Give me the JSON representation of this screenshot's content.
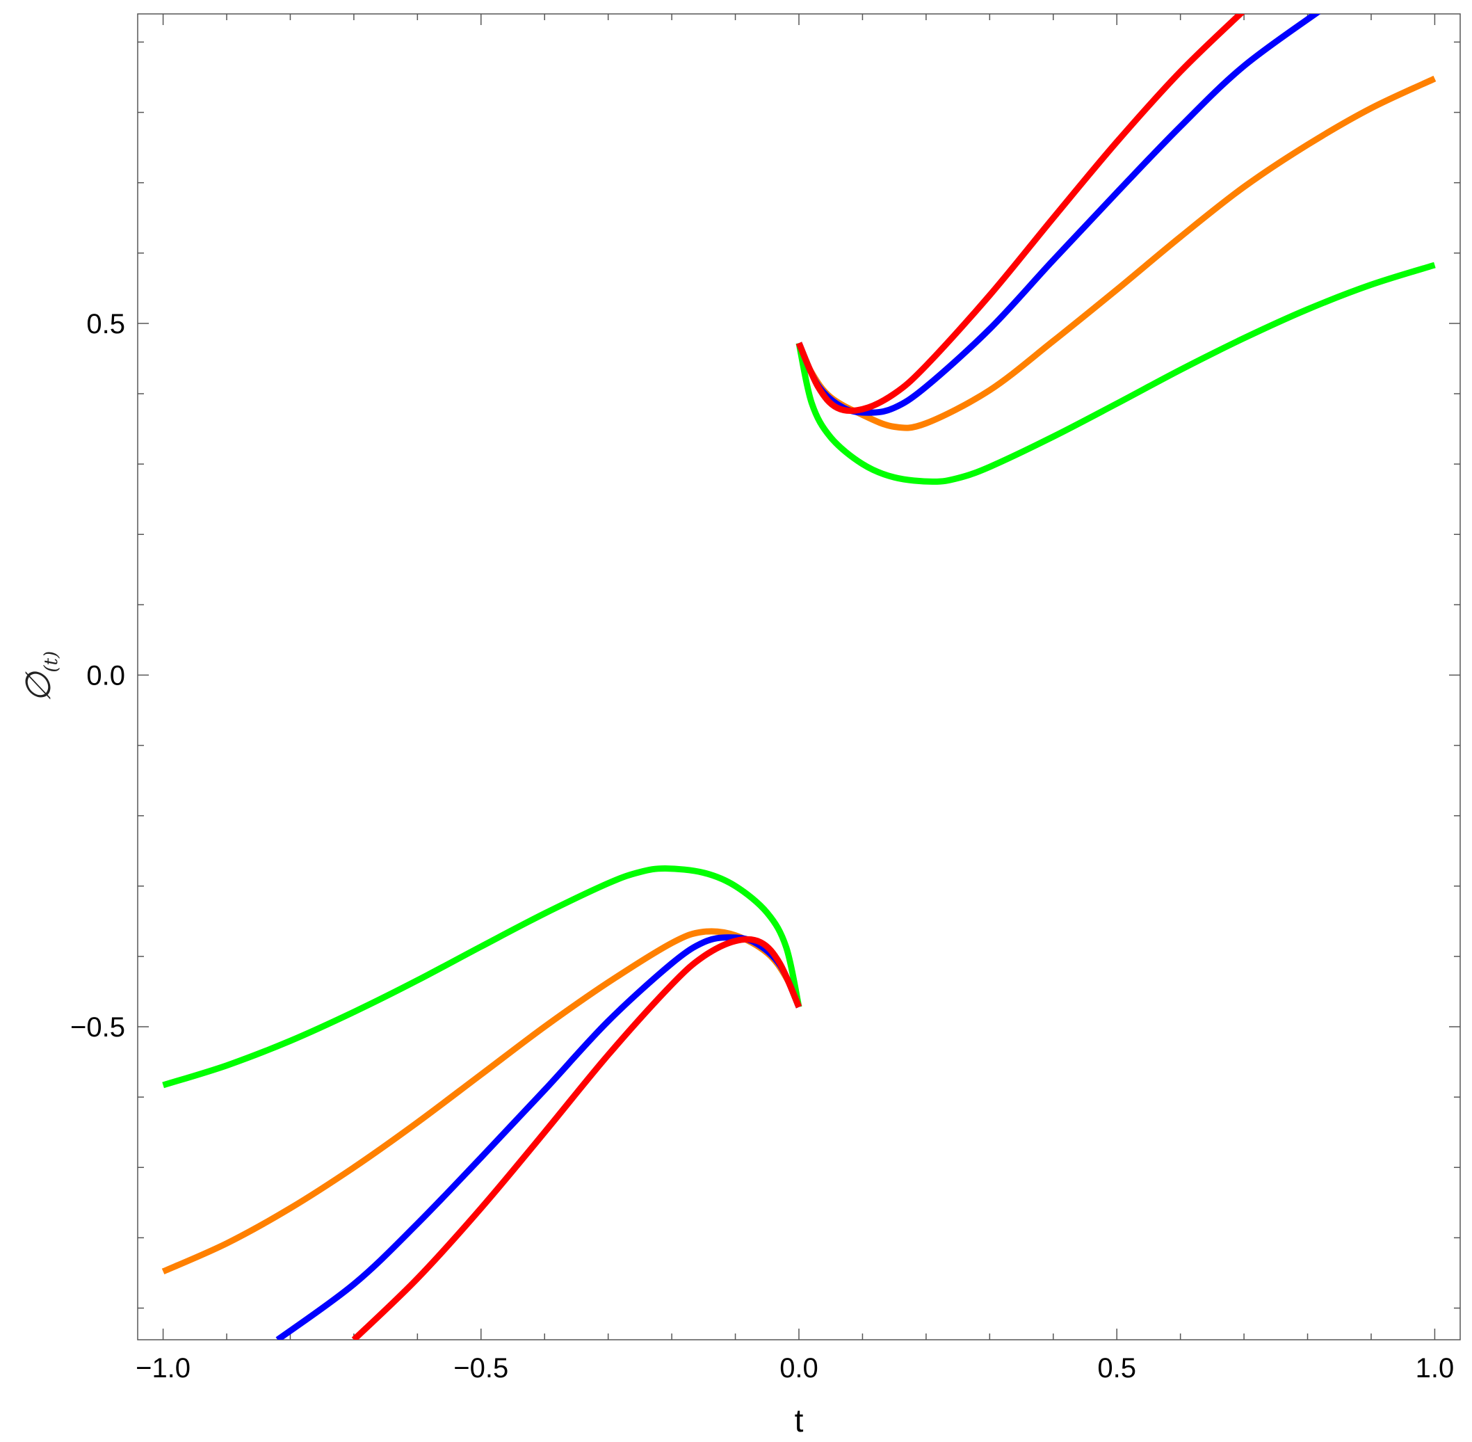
{
  "chart_data": {
    "type": "line",
    "title": "",
    "xlabel": "t",
    "ylabel": {
      "main": "∅",
      "sub": "(t)"
    },
    "xlim": [
      -1.04,
      1.04
    ],
    "ylim": [
      -0.945,
      0.94
    ],
    "x_ticks": [
      -1.0,
      -0.5,
      0.0,
      0.5,
      1.0
    ],
    "x_tick_labels": [
      "−1.0",
      "−0.5",
      "0.0",
      "0.5",
      "1.0"
    ],
    "y_ticks": [
      -0.5,
      0.0,
      0.5
    ],
    "y_tick_labels": [
      "−0.5",
      "0.0",
      "0.5"
    ],
    "grid": false,
    "legend": "none",
    "series": [
      {
        "color": "#00ff00",
        "points": [
          [
            -1.0,
            -0.583
          ],
          [
            -0.9,
            -0.555
          ],
          [
            -0.8,
            -0.52
          ],
          [
            -0.7,
            -0.479
          ],
          [
            -0.6,
            -0.434
          ],
          [
            -0.5,
            -0.386
          ],
          [
            -0.4,
            -0.339
          ],
          [
            -0.3,
            -0.296
          ],
          [
            -0.25,
            -0.28
          ],
          [
            -0.21,
            -0.275
          ],
          [
            -0.15,
            -0.281
          ],
          [
            -0.1,
            -0.3
          ],
          [
            -0.05,
            -0.338
          ],
          [
            -0.02,
            -0.387
          ],
          [
            0.0,
            -0.472
          ],
          [
            null,
            null
          ],
          [
            0.0,
            0.472
          ],
          [
            0.02,
            0.387
          ],
          [
            0.05,
            0.338
          ],
          [
            0.1,
            0.3
          ],
          [
            0.15,
            0.281
          ],
          [
            0.21,
            0.275
          ],
          [
            0.25,
            0.28
          ],
          [
            0.3,
            0.296
          ],
          [
            0.4,
            0.339
          ],
          [
            0.5,
            0.386
          ],
          [
            0.6,
            0.434
          ],
          [
            0.7,
            0.479
          ],
          [
            0.8,
            0.52
          ],
          [
            0.9,
            0.555
          ],
          [
            1.0,
            0.583
          ]
        ]
      },
      {
        "color": "#ff8000",
        "points": [
          [
            -1.0,
            -0.848
          ],
          [
            -0.9,
            -0.808
          ],
          [
            -0.8,
            -0.758
          ],
          [
            -0.7,
            -0.7
          ],
          [
            -0.6,
            -0.636
          ],
          [
            -0.5,
            -0.568
          ],
          [
            -0.4,
            -0.5
          ],
          [
            -0.3,
            -0.437
          ],
          [
            -0.2,
            -0.381
          ],
          [
            -0.15,
            -0.365
          ],
          [
            -0.1,
            -0.37
          ],
          [
            -0.05,
            -0.395
          ],
          [
            -0.02,
            -0.43
          ],
          [
            0.0,
            -0.472
          ],
          [
            null,
            null
          ],
          [
            0.0,
            0.472
          ],
          [
            0.02,
            0.43
          ],
          [
            0.05,
            0.395
          ],
          [
            0.1,
            0.37
          ],
          [
            0.15,
            0.353
          ],
          [
            0.2,
            0.358
          ],
          [
            0.3,
            0.405
          ],
          [
            0.4,
            0.475
          ],
          [
            0.5,
            0.548
          ],
          [
            0.6,
            0.623
          ],
          [
            0.7,
            0.694
          ],
          [
            0.8,
            0.754
          ],
          [
            0.9,
            0.806
          ],
          [
            1.0,
            0.848
          ]
        ]
      },
      {
        "color": "#0000ff",
        "points": [
          [
            -0.82,
            -0.945
          ],
          [
            -0.7,
            -0.866
          ],
          [
            -0.6,
            -0.78
          ],
          [
            -0.5,
            -0.686
          ],
          [
            -0.4,
            -0.59
          ],
          [
            -0.3,
            -0.492
          ],
          [
            -0.2,
            -0.41
          ],
          [
            -0.15,
            -0.38
          ],
          [
            -0.11,
            -0.373
          ],
          [
            -0.07,
            -0.38
          ],
          [
            -0.03,
            -0.412
          ],
          [
            0.0,
            -0.472
          ],
          [
            null,
            null
          ],
          [
            0.0,
            0.472
          ],
          [
            0.03,
            0.412
          ],
          [
            0.07,
            0.38
          ],
          [
            0.11,
            0.373
          ],
          [
            0.15,
            0.38
          ],
          [
            0.2,
            0.41
          ],
          [
            0.3,
            0.492
          ],
          [
            0.4,
            0.59
          ],
          [
            0.5,
            0.686
          ],
          [
            0.6,
            0.78
          ],
          [
            0.7,
            0.866
          ],
          [
            0.82,
            0.945
          ]
        ]
      },
      {
        "color": "#ff0000",
        "points": [
          [
            -0.7,
            -0.945
          ],
          [
            -0.6,
            -0.858
          ],
          [
            -0.5,
            -0.758
          ],
          [
            -0.4,
            -0.65
          ],
          [
            -0.3,
            -0.54
          ],
          [
            -0.2,
            -0.44
          ],
          [
            -0.15,
            -0.4
          ],
          [
            -0.1,
            -0.378
          ],
          [
            -0.06,
            -0.38
          ],
          [
            -0.03,
            -0.41
          ],
          [
            0.0,
            -0.472
          ],
          [
            null,
            null
          ],
          [
            0.0,
            0.472
          ],
          [
            0.03,
            0.41
          ],
          [
            0.06,
            0.38
          ],
          [
            0.1,
            0.378
          ],
          [
            0.15,
            0.4
          ],
          [
            0.2,
            0.44
          ],
          [
            0.3,
            0.54
          ],
          [
            0.4,
            0.65
          ],
          [
            0.5,
            0.758
          ],
          [
            0.6,
            0.858
          ],
          [
            0.7,
            0.945
          ]
        ]
      }
    ]
  }
}
